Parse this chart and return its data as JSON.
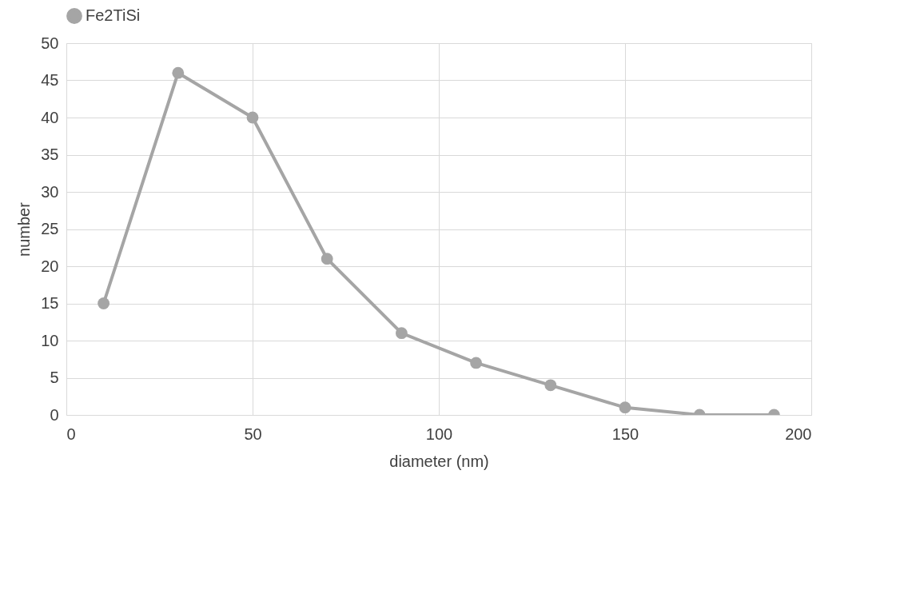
{
  "chart_data": {
    "type": "line",
    "xlabel": "diameter (nm)",
    "ylabel": "number",
    "x": [
      10,
      30,
      50,
      70,
      90,
      110,
      130,
      150,
      170,
      190
    ],
    "series": [
      {
        "name": "Fe2TiSi",
        "color": "#a5a5a5",
        "values": [
          15,
          46,
          40,
          21,
          11,
          7,
          4,
          1,
          0,
          0
        ]
      }
    ],
    "xlim": [
      0,
      200
    ],
    "xticks": [
      0,
      50,
      100,
      150,
      200
    ],
    "ylim": [
      0,
      50
    ],
    "yticks": [
      0,
      5,
      10,
      15,
      20,
      25,
      30,
      35,
      40,
      45,
      50
    ],
    "grid": true,
    "legend": "top",
    "marker": "circle",
    "line_style": "solid"
  }
}
